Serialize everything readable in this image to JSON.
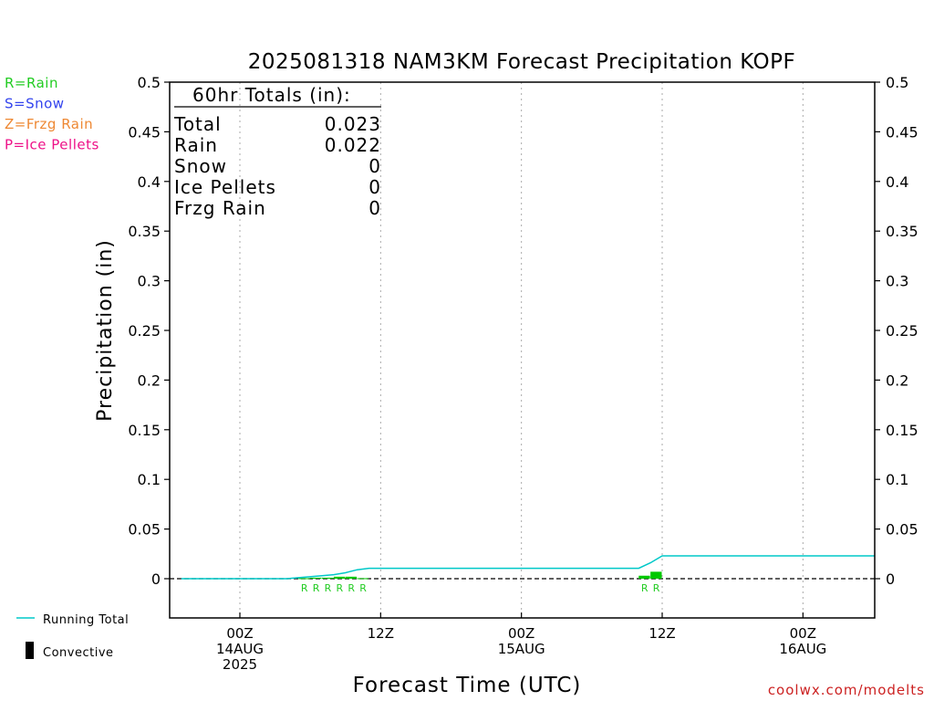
{
  "chart_data": {
    "type": "bar",
    "title": "2025081318 NAM3KM Forecast Precipitation KOPF",
    "xlabel": "Forecast Time (UTC)",
    "ylabel": "Precipitation (in)",
    "ylim": [
      0,
      0.5
    ],
    "yticks": [
      "0.5",
      "0.45",
      "0.4",
      "0.35",
      "0.3",
      "0.25",
      "0.2",
      "0.15",
      "0.1",
      "0.05",
      "0"
    ],
    "xlim_hours": [
      -4.5,
      55.5
    ],
    "xticks": [
      {
        "hour": 0,
        "lines": [
          "00Z",
          "14AUG",
          "2025"
        ]
      },
      {
        "hour": 12,
        "lines": [
          "12Z"
        ]
      },
      {
        "hour": 24,
        "lines": [
          "00Z",
          "15AUG"
        ]
      },
      {
        "hour": 36,
        "lines": [
          "12Z"
        ]
      },
      {
        "hour": 48,
        "lines": [
          "00Z",
          "16AUG"
        ]
      }
    ],
    "running_total": {
      "name": "Running Total",
      "color": "#00c8c8",
      "hours": [
        -5,
        4,
        5,
        7,
        8,
        9,
        10,
        11,
        12,
        24,
        34,
        35,
        36,
        56
      ],
      "values": [
        0,
        0,
        0.001,
        0.003,
        0.004,
        0.006,
        0.009,
        0.0105,
        0.0105,
        0.0105,
        0.0105,
        0.016,
        0.023,
        0.023
      ]
    },
    "hourly_bars": {
      "color": "#00c800",
      "hours": [
        6,
        7,
        8,
        9,
        10,
        11,
        35,
        36
      ],
      "values": [
        0.0005,
        0.001,
        0.001,
        0.002,
        0.002,
        0.0005,
        0.003,
        0.007
      ],
      "ptype": [
        "R",
        "R",
        "R",
        "R",
        "R",
        "R",
        "R",
        "R"
      ]
    },
    "totals_box": {
      "header": "60hr Totals (in):",
      "rows": [
        {
          "label": "Total",
          "value": "0.023"
        },
        {
          "label": "Rain",
          "value": "0.022"
        },
        {
          "label": "Snow",
          "value": "0"
        },
        {
          "label": "Ice Pellets",
          "value": "0"
        },
        {
          "label": "Frzg Rain",
          "value": "0"
        }
      ]
    },
    "ptype_legend": [
      {
        "text": "R=Rain",
        "color": "#22cc22"
      },
      {
        "text": "S=Snow",
        "color": "#3344ee"
      },
      {
        "text": "Z=Frzg Rain",
        "color": "#ee8833"
      },
      {
        "text": "P=Ice Pellets",
        "color": "#ee1188"
      }
    ],
    "series_legend": [
      {
        "text": "Running Total",
        "color": "#00c8c8",
        "kind": "line"
      },
      {
        "text": "Convective",
        "color": "#000000",
        "kind": "bar"
      }
    ],
    "grid": true
  },
  "credit": "coolwx.com/modelts"
}
